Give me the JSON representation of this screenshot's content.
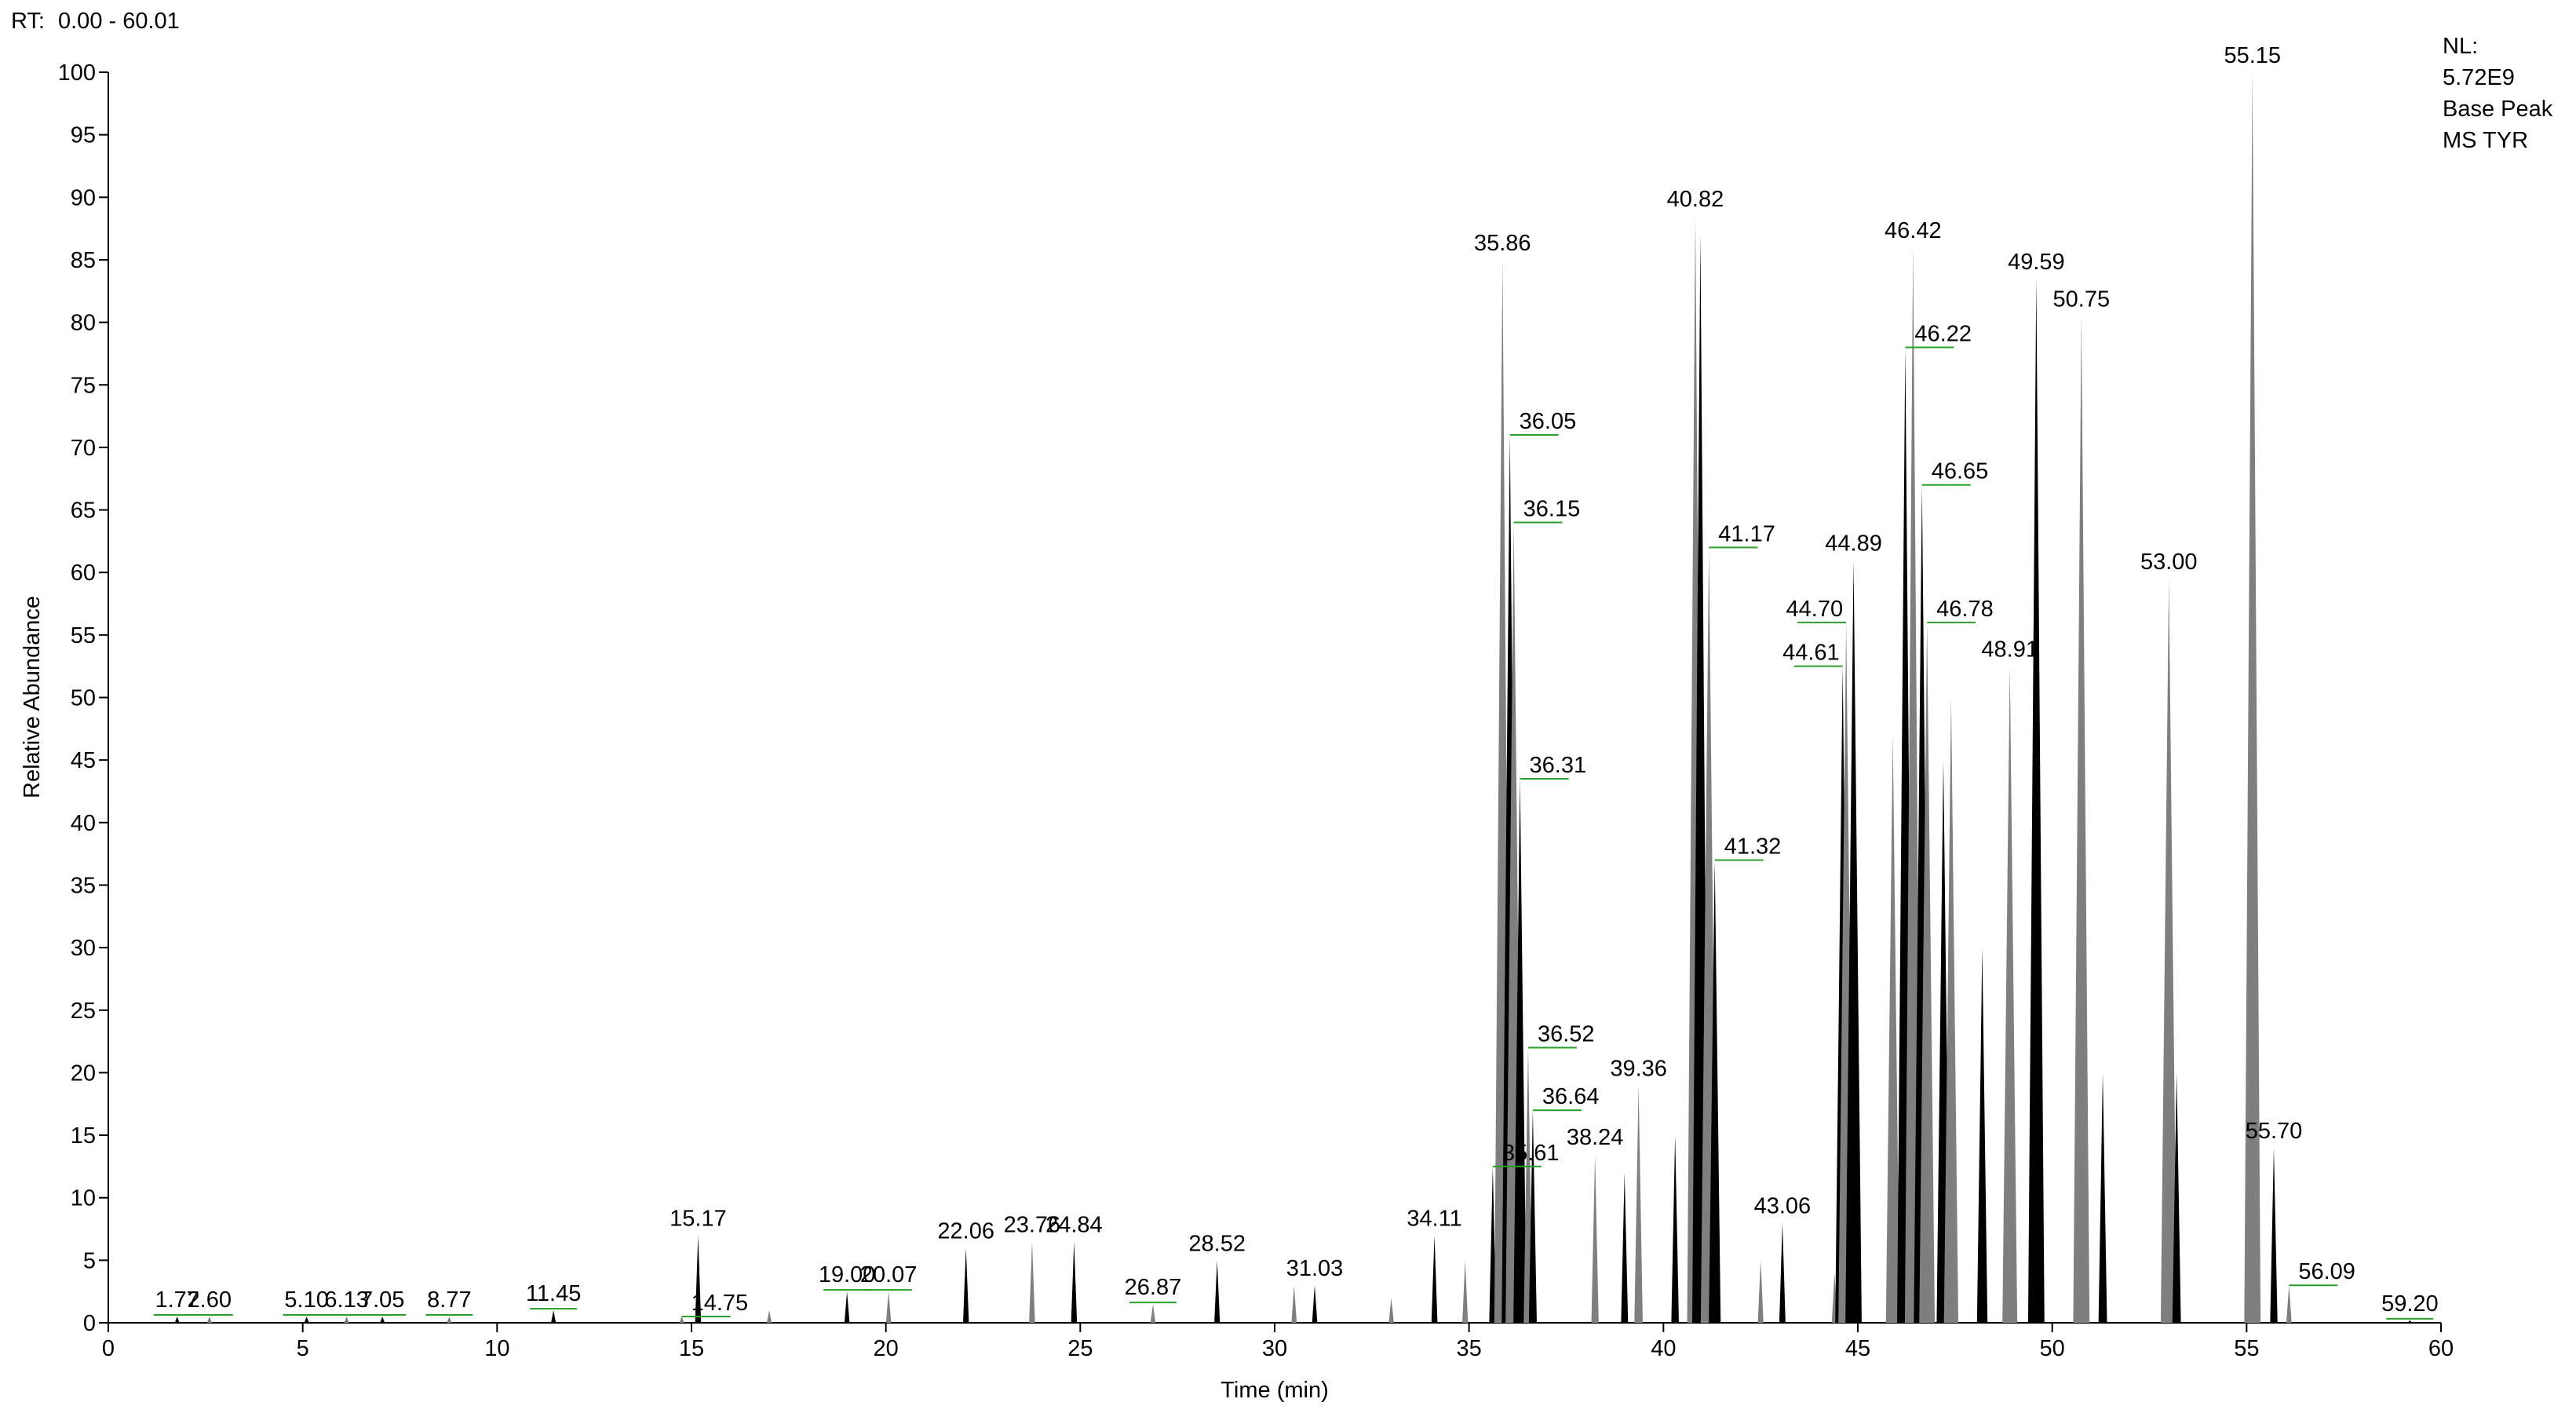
{
  "chart_data": {
    "type": "chromatogram",
    "range_prefix": "RT:",
    "range_text": "0.00 - 60.01",
    "range_color": "#00008b",
    "annotations": [
      "NL:",
      "5.72E9",
      "Base Peak",
      " MS TYR"
    ],
    "xlabel": "Time (min)",
    "ylabel": "Relative Abundance",
    "xlim": [
      0,
      60
    ],
    "ylim": [
      0,
      100
    ],
    "xticks": [
      0,
      5,
      10,
      15,
      20,
      25,
      30,
      35,
      40,
      45,
      50,
      55,
      60
    ],
    "yticks": [
      0,
      5,
      10,
      15,
      20,
      25,
      30,
      35,
      40,
      45,
      50,
      55,
      60,
      65,
      70,
      75,
      80,
      85,
      90,
      95,
      100
    ],
    "color": "#000000",
    "leader_color": "#2aa02a",
    "series": [
      {
        "name": "Base Peak",
        "x": [
          1.77,
          2.6,
          5.1,
          6.13,
          7.05,
          8.77,
          11.45,
          14.75,
          15.17,
          17.0,
          19.0,
          20.07,
          22.06,
          23.76,
          24.84,
          26.87,
          28.52,
          30.5,
          31.03,
          33.0,
          34.11,
          34.9,
          35.61,
          35.86,
          36.05,
          36.15,
          36.31,
          36.52,
          36.64,
          38.24,
          39.0,
          39.36,
          40.3,
          40.82,
          40.95,
          41.17,
          41.32,
          42.5,
          43.06,
          44.4,
          44.61,
          44.7,
          44.89,
          45.9,
          46.22,
          46.42,
          46.65,
          46.78,
          47.2,
          47.4,
          48.2,
          48.91,
          49.59,
          50.75,
          51.3,
          53.0,
          53.2,
          55.15,
          55.7,
          56.09,
          59.2
        ],
        "values": [
          0.5,
          0.5,
          0.5,
          0.5,
          0.5,
          0.5,
          1,
          0.5,
          7,
          1,
          2.5,
          2.5,
          6,
          6.5,
          6.5,
          1.5,
          5,
          3,
          3,
          2,
          7,
          5,
          12.5,
          85,
          71,
          64,
          43.5,
          22,
          17,
          13.5,
          12,
          19,
          15,
          88.5,
          87,
          62,
          37,
          5,
          8,
          4,
          52.5,
          56,
          61,
          47,
          78,
          86,
          67,
          56,
          45,
          50,
          30,
          52.5,
          83.5,
          80.5,
          20,
          59.5,
          20,
          100,
          14,
          3,
          0.2
        ],
        "value_labels": [
          "1.77",
          "2.60",
          "5.10",
          "6.13",
          "7.05",
          "8.77",
          "11.45",
          "14.75",
          "15.17",
          null,
          "19.00",
          "20.07",
          "22.06",
          "23.76",
          "24.84",
          "26.87",
          "28.52",
          null,
          "31.03",
          null,
          "34.11",
          null,
          "35.61",
          "35.86",
          "36.05",
          "36.15",
          "36.31",
          "36.52",
          "36.64",
          "38.24",
          null,
          "39.36",
          null,
          "40.82",
          null,
          "41.17",
          "41.32",
          null,
          "43.06",
          null,
          "44.61",
          "44.70",
          "44.89",
          null,
          "46.22",
          "46.42",
          "46.65",
          "46.78",
          null,
          null,
          null,
          "48.91",
          "49.59",
          "50.75",
          null,
          "53.00",
          null,
          "55.15",
          "55.70",
          "56.09",
          "59.20"
        ]
      }
    ]
  }
}
